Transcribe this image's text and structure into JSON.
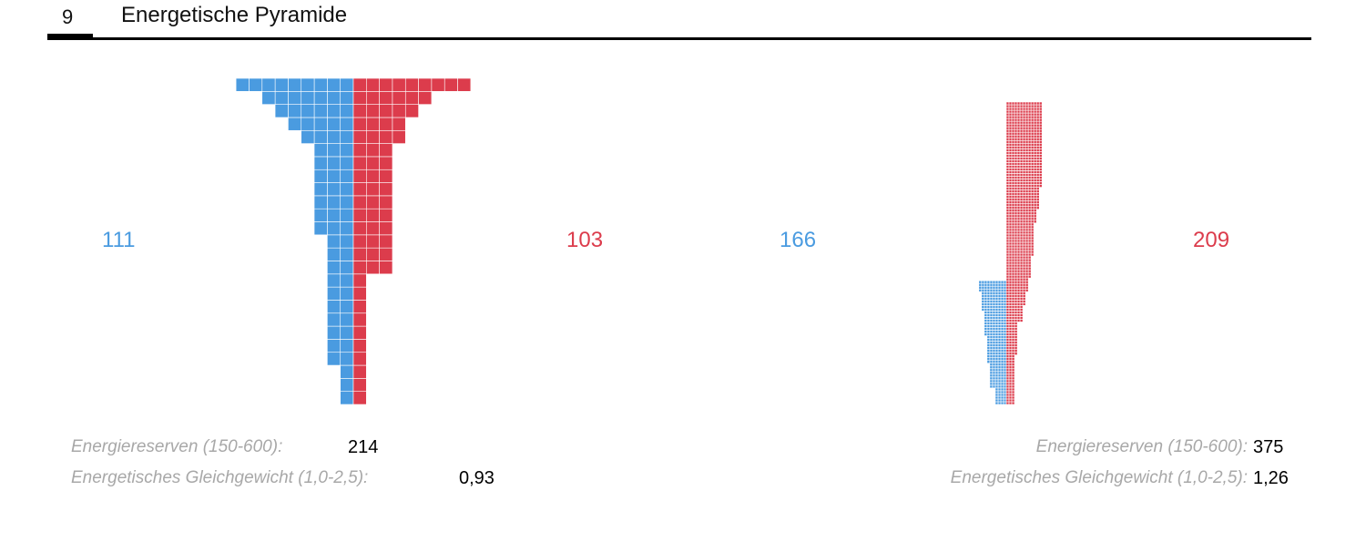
{
  "section": {
    "number": "9",
    "title": "Energetische Pyramide"
  },
  "colors": {
    "left": "#4a9be0",
    "right": "#dc3c4c",
    "grid": "#ffffff"
  },
  "chart_data": [
    {
      "type": "bar",
      "left_value": "111",
      "right_value": "103",
      "left_rows": [
        1,
        1,
        1,
        2,
        2,
        2,
        2,
        2,
        2,
        2,
        2,
        2,
        2,
        3,
        3,
        3,
        3,
        3,
        3,
        3,
        4,
        5,
        6,
        7,
        9
      ],
      "right_rows": [
        1,
        1,
        1,
        1,
        1,
        1,
        1,
        1,
        1,
        1,
        3,
        3,
        3,
        3,
        3,
        3,
        3,
        3,
        3,
        3,
        4,
        4,
        5,
        6,
        9
      ],
      "stats": [
        {
          "label": "Energiereserven (150-600):",
          "value": "214"
        },
        {
          "label": "Energetisches Gleichgewicht (1,0-2,5):",
          "value": "0,93"
        }
      ]
    },
    {
      "type": "bar",
      "left_value": "166",
      "right_value": "209",
      "left_rows": [
        4,
        4,
        4,
        4,
        4,
        4,
        6,
        6,
        6,
        6,
        6,
        6,
        6,
        6,
        6,
        7,
        7,
        7,
        7,
        7,
        7,
        7,
        7,
        7,
        7,
        8,
        8,
        8,
        8,
        8,
        8,
        8,
        8,
        8,
        9,
        9,
        9,
        9,
        9,
        9,
        9,
        10,
        10,
        10,
        10
      ],
      "right_rows": [
        3,
        3,
        3,
        3,
        3,
        3,
        3,
        3,
        3,
        3,
        3,
        3,
        3,
        3,
        3,
        3,
        3,
        3,
        4,
        4,
        4,
        4,
        4,
        4,
        4,
        4,
        4,
        4,
        4,
        4,
        6,
        6,
        6,
        6,
        6,
        6,
        7,
        7,
        7,
        7,
        7,
        8,
        8,
        8,
        8,
        8,
        9,
        9,
        9,
        9,
        9,
        9,
        9,
        9,
        10,
        10,
        10,
        10,
        10,
        10,
        10,
        10,
        10,
        10,
        10,
        10,
        11,
        11,
        11,
        11,
        11,
        12,
        12,
        12,
        12,
        12,
        12,
        12,
        12,
        13,
        13,
        13,
        13,
        13,
        13,
        13,
        13,
        13,
        13,
        13,
        13,
        13,
        13,
        13,
        13,
        13,
        13,
        13,
        13,
        13,
        13,
        13,
        13,
        13,
        13,
        13,
        13,
        13,
        13,
        13
      ],
      "stats": [
        {
          "label": "Energiereserven (150-600):",
          "value": "375"
        },
        {
          "label": "Energetisches Gleichgewicht (1,0-2,5):",
          "value": "1,26"
        }
      ]
    }
  ]
}
